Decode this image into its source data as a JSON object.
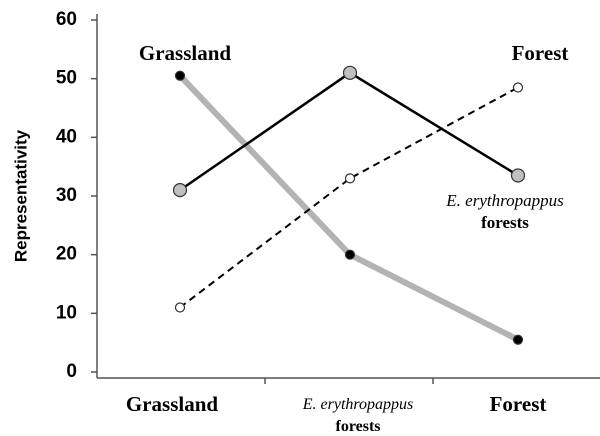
{
  "chart_data": {
    "type": "line",
    "ylabel": "Representativity",
    "categories": [
      "Grassland",
      "E. erythropappus forests",
      "Forest"
    ],
    "ylim": [
      0,
      60
    ],
    "yticks": [
      0,
      10,
      20,
      30,
      40,
      50,
      60
    ],
    "grid": false,
    "series": [
      {
        "name": "Grassland",
        "color": "#b3b3b3",
        "marker_color": "#000000",
        "dash": false,
        "width": 6,
        "values": [
          50.5,
          20,
          5.5
        ]
      },
      {
        "name": "E. erythropappus forests",
        "color": "#000000",
        "marker_color": "#c0c0c0",
        "dash": false,
        "width": 2.5,
        "values": [
          31,
          51,
          33.5
        ]
      },
      {
        "name": "Forest",
        "color": "#000000",
        "marker_color": "#ffffff",
        "dash": true,
        "width": 2,
        "values": [
          11,
          33,
          48.5
        ]
      }
    ]
  }
}
